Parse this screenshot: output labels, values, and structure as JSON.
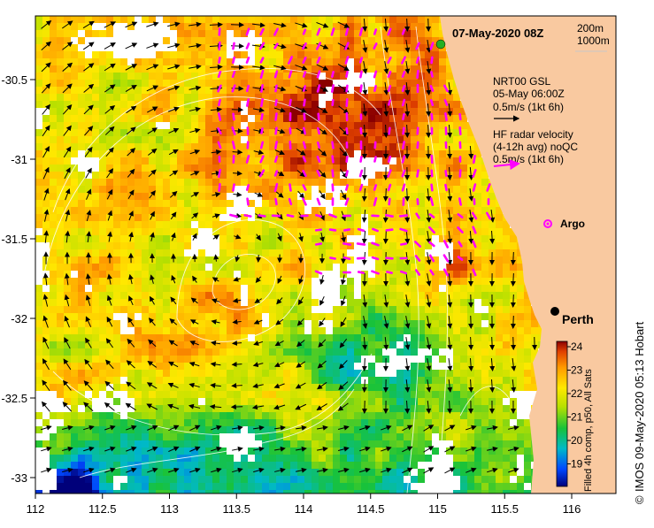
{
  "map": {
    "date_label": "07-May-2020 08Z",
    "isobaths": [
      "200m",
      "1000m"
    ],
    "legend": {
      "gsl_line1": "NRT00 GSL",
      "gsl_line2": "05-May 06:00Z",
      "gsl_scale": "0.5m/s (1kt 6h)",
      "hf_line1": "HF radar velocity",
      "hf_line2": "(4-12h avg) noQC",
      "hf_scale": "0.5m/s (1kt 6h)"
    },
    "argo_label": "Argo",
    "city_label": "Perth",
    "x_ticks": [
      "112",
      "112.5",
      "113",
      "113.5",
      "114",
      "114.5",
      "115",
      "115.5",
      "116"
    ],
    "y_ticks": [
      "-30.5",
      "-31",
      "-31.5",
      "-32",
      "-32.5",
      "-33"
    ],
    "colorbar": {
      "ticks": [
        "24",
        "23",
        "22",
        "21",
        "20",
        "19"
      ],
      "title": "Filled 4h comp, p50, All Sats"
    },
    "credit": "IMOS 09-May-2020 05:13 Hobart",
    "copyright_symbol": "©",
    "colors": {
      "land": "#f9c9a0",
      "hf_arrow": "#ff00ff",
      "gsl_arrow": "#000000",
      "cloud": "#ffffff"
    }
  }
}
